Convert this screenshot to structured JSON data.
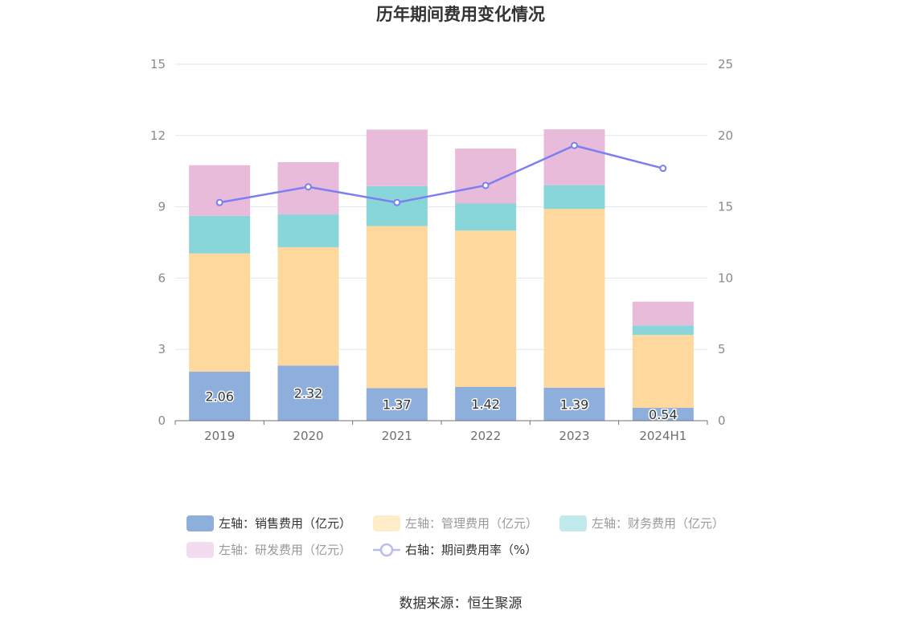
{
  "chart_data": {
    "type": "bar",
    "title": "历年期间费用变化情况",
    "categories": [
      "2019",
      "2020",
      "2021",
      "2022",
      "2023",
      "2024H1"
    ],
    "y_left": {
      "min": 0,
      "max": 15,
      "ticks": [
        0,
        3,
        6,
        9,
        12,
        15
      ]
    },
    "y_right": {
      "min": 0,
      "max": 25,
      "ticks": [
        0,
        5,
        10,
        15,
        20,
        25
      ]
    },
    "series": [
      {
        "name": "左轴：销售费用（亿元）",
        "kind": "bar",
        "axis": "left",
        "color": "#8eaedc",
        "values": [
          2.06,
          2.32,
          1.37,
          1.42,
          1.39,
          0.54
        ],
        "labels": [
          "2.06",
          "2.32",
          "1.37",
          "1.42",
          "1.39",
          "0.54"
        ]
      },
      {
        "name": "左轴：管理费用（亿元）",
        "kind": "bar",
        "axis": "left",
        "color": "#fed89c",
        "values": [
          4.98,
          4.98,
          6.82,
          6.58,
          7.52,
          3.07
        ]
      },
      {
        "name": "左轴：财务费用（亿元）",
        "kind": "bar",
        "axis": "left",
        "color": "#88d6da",
        "values": [
          1.58,
          1.38,
          1.68,
          1.14,
          1.0,
          0.4
        ]
      },
      {
        "name": "左轴：研发费用（亿元）",
        "kind": "bar",
        "axis": "left",
        "color": "#e8bbdb",
        "values": [
          2.13,
          2.2,
          2.38,
          2.31,
          2.35,
          1.0
        ]
      },
      {
        "name": "右轴：期间费用率（%）",
        "kind": "line",
        "axis": "right",
        "color": "#7b7ff0",
        "values": [
          15.3,
          16.4,
          15.3,
          16.5,
          19.3,
          17.7
        ]
      }
    ],
    "source": "数据来源：恒生聚源"
  }
}
